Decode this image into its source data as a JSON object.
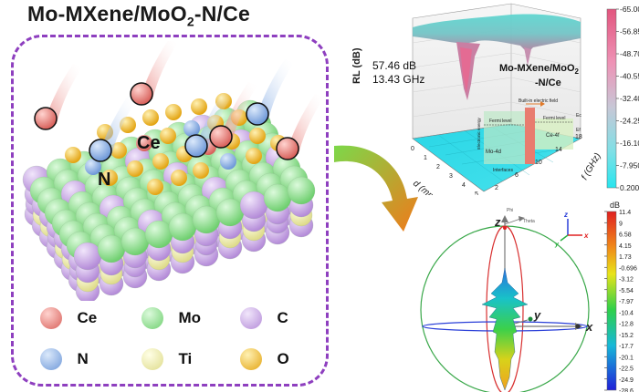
{
  "title": {
    "main": "Mo-MXene/MoO",
    "sub": "2",
    "tail": "-N/Ce"
  },
  "atom_labels": {
    "ce": "Ce",
    "n": "N"
  },
  "legend": [
    {
      "symbol": "Ce",
      "color": "#e98b86"
    },
    {
      "symbol": "Mo",
      "color": "#9be39b"
    },
    {
      "symbol": "C",
      "color": "#c9a6e6"
    },
    {
      "symbol": "N",
      "color": "#8fb7ea"
    },
    {
      "symbol": "Ti",
      "color": "#f2f0a6"
    },
    {
      "symbol": "O",
      "color": "#f1c14a"
    }
  ],
  "rl_plot": {
    "ylabel": "RL (dB)",
    "xlabel_d": "d (mm)",
    "xlabel_f": "f (GHz)",
    "peak_value": "57.46 dB",
    "peak_freq": "13.43 GHz",
    "material": {
      "line1": "Mo-MXene/MoO",
      "sub": "2",
      "line2": "-N/Ce"
    },
    "inset": {
      "field": "Built-in electric field",
      "fermi_left": "Fermi level",
      "fermi_right": "Fermi level",
      "ee": "Electronic energy",
      "mo4d": "Mo-4d",
      "ce4f": "Ce-4f",
      "interfaces": "Interfaces",
      "ec": "Ec",
      "ef": "Ef"
    },
    "d_ticks": [
      "0",
      "1",
      "2",
      "3",
      "4",
      "5"
    ],
    "f_ticks": [
      "2",
      "6",
      "10",
      "14",
      "18"
    ],
    "colorbar": [
      "-65.00",
      "-56.85",
      "-48.70",
      "-40.55",
      "-32.40",
      "-24.25",
      "-16.10",
      "-7.950",
      "0.2000"
    ]
  },
  "radiation_plot": {
    "unit": "dB",
    "axis_z": "z",
    "axis_y": "y",
    "axis_x": "x",
    "phi_label": "Phi",
    "theta_label": "Theta",
    "colorbar": [
      "11.4",
      "9",
      "6.58",
      "4.15",
      "1.73",
      "-0.696",
      "-3.12",
      "-5.54",
      "-7.97",
      "-10.4",
      "-12.8",
      "-15.2",
      "-17.7",
      "-20.1",
      "-22.5",
      "-24.9",
      "-28.6"
    ]
  },
  "colors": {
    "dashed_border": "#8e3fbf",
    "arrow_start": "#7cd84a",
    "arrow_end": "#f07a1a"
  }
}
